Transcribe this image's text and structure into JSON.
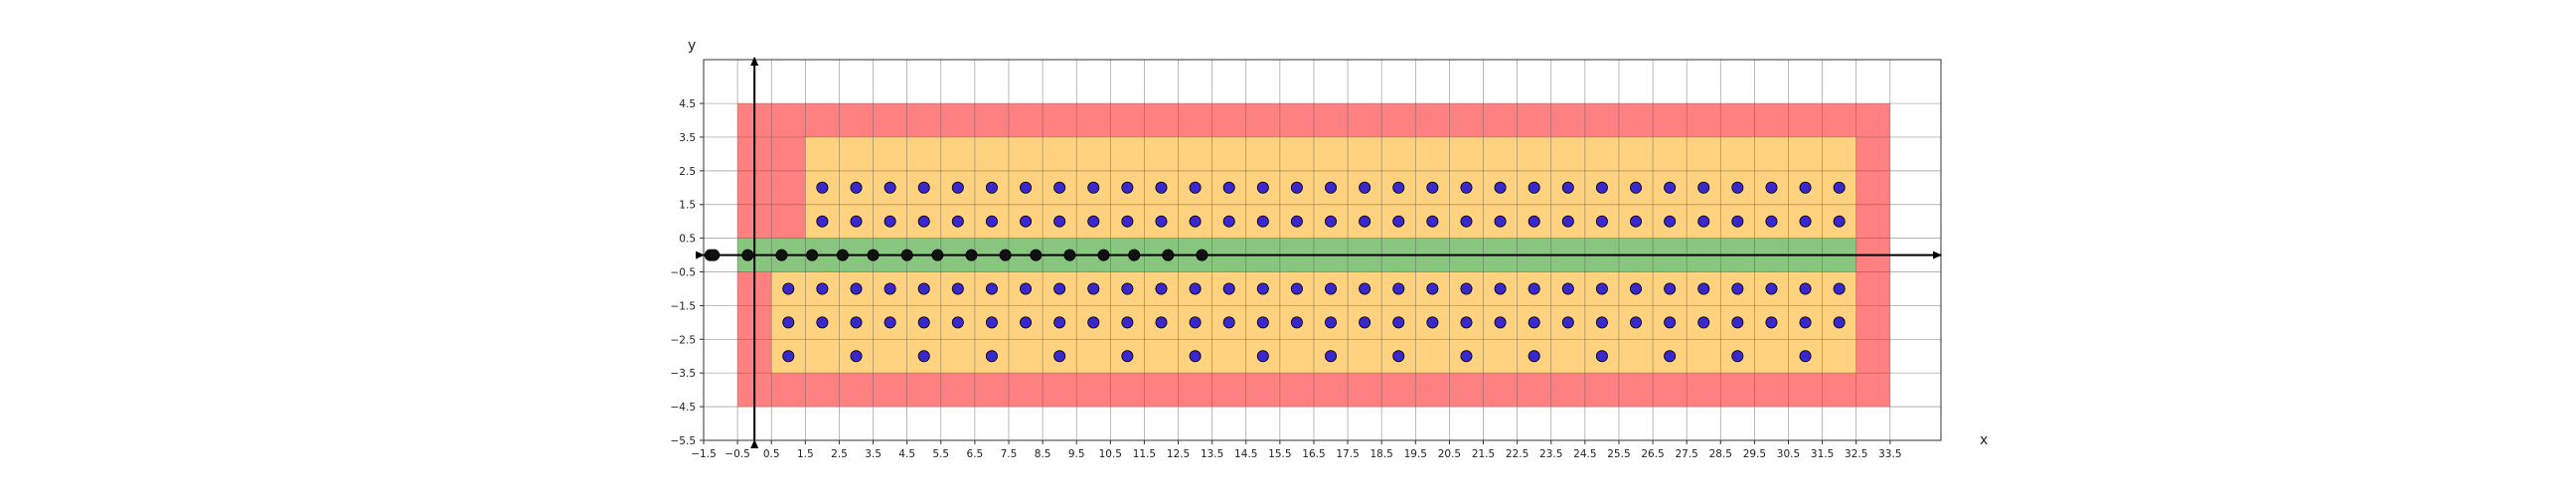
{
  "chart_data": {
    "type": "scatter",
    "title": "",
    "xlabel": "x",
    "ylabel": "y",
    "xlim": [
      -1.5,
      35.0
    ],
    "ylim": [
      -5.5,
      5.8
    ],
    "grid": true,
    "x_ticks": [
      -1.5,
      -0.5,
      0.5,
      1.5,
      2.5,
      3.5,
      4.5,
      5.5,
      6.5,
      7.5,
      8.5,
      9.5,
      10.5,
      11.5,
      12.5,
      13.5,
      14.5,
      15.5,
      16.5,
      17.5,
      18.5,
      19.5,
      20.5,
      21.5,
      22.5,
      23.5,
      24.5,
      25.5,
      26.5,
      27.5,
      28.5,
      29.5,
      30.5,
      31.5,
      32.5,
      33.5
    ],
    "x_tick_labels": [
      "−1.5",
      "−0.5",
      "0.5",
      "1.5",
      "2.5",
      "3.5",
      "4.5",
      "5.5",
      "6.5",
      "7.5",
      "8.5",
      "9.5",
      "10.5",
      "11.5",
      "12.5",
      "13.5",
      "14.5",
      "15.5",
      "16.5",
      "17.5",
      "18.5",
      "19.5",
      "20.5",
      "21.5",
      "22.5",
      "23.5",
      "24.5",
      "25.5",
      "26.5",
      "27.5",
      "28.5",
      "29.5",
      "30.5",
      "31.5",
      "32.5",
      "33.5"
    ],
    "y_ticks": [
      4.5,
      3.5,
      2.5,
      1.5,
      0.5,
      -0.5,
      -1.5,
      -2.5,
      -3.5,
      -4.5,
      -5.5
    ],
    "y_tick_labels": [
      "4.5",
      "3.5",
      "2.5",
      "1.5",
      "0.5",
      "−0.5",
      "−1.5",
      "−2.5",
      "−3.5",
      "−4.5",
      "−5.5"
    ],
    "regions": [
      {
        "name": "outer",
        "color": "#ff8080",
        "x_range": [
          -0.5,
          33.5
        ],
        "y_range": [
          -4.5,
          4.5
        ]
      },
      {
        "name": "upper-inner",
        "color": "#ffd27f",
        "x_range": [
          1.5,
          32.5
        ],
        "y_range": [
          0.5,
          3.5
        ]
      },
      {
        "name": "lower-inner",
        "color": "#ffd27f",
        "x_range": [
          0.5,
          32.5
        ],
        "y_range": [
          -3.5,
          -0.5
        ]
      },
      {
        "name": "band",
        "color": "#88c57f",
        "x_range": [
          -0.5,
          32.5
        ],
        "y_range": [
          -0.5,
          0.5
        ]
      }
    ],
    "series": [
      {
        "color": "#3b28cc",
        "marker": "circle",
        "description": "blue grid points",
        "rows": [
          {
            "y": 2,
            "x_start": 2,
            "x_end": 32,
            "x_step": 1
          },
          {
            "y": 1,
            "x_start": 2,
            "x_end": 32,
            "x_step": 1
          },
          {
            "y": -1,
            "x_start": 1,
            "x_end": 32,
            "x_step": 1
          },
          {
            "y": -2,
            "x_start": 1,
            "x_end": 32,
            "x_step": 1
          },
          {
            "y": -3,
            "x_start": 1,
            "x_end": 31,
            "x_step": 2
          }
        ]
      },
      {
        "color": "#111111",
        "marker": "circle",
        "description": "black axis points",
        "points": [
          [
            -1.3,
            0
          ],
          [
            -1.2,
            0
          ],
          [
            -0.2,
            0
          ],
          [
            0.8,
            0
          ],
          [
            1.7,
            0
          ],
          [
            2.6,
            0
          ],
          [
            3.5,
            0
          ],
          [
            4.5,
            0
          ],
          [
            5.4,
            0
          ],
          [
            6.4,
            0
          ],
          [
            7.4,
            0
          ],
          [
            8.3,
            0
          ],
          [
            9.3,
            0
          ],
          [
            10.3,
            0
          ],
          [
            11.2,
            0
          ],
          [
            12.2,
            0
          ],
          [
            13.2,
            0
          ]
        ]
      }
    ]
  }
}
